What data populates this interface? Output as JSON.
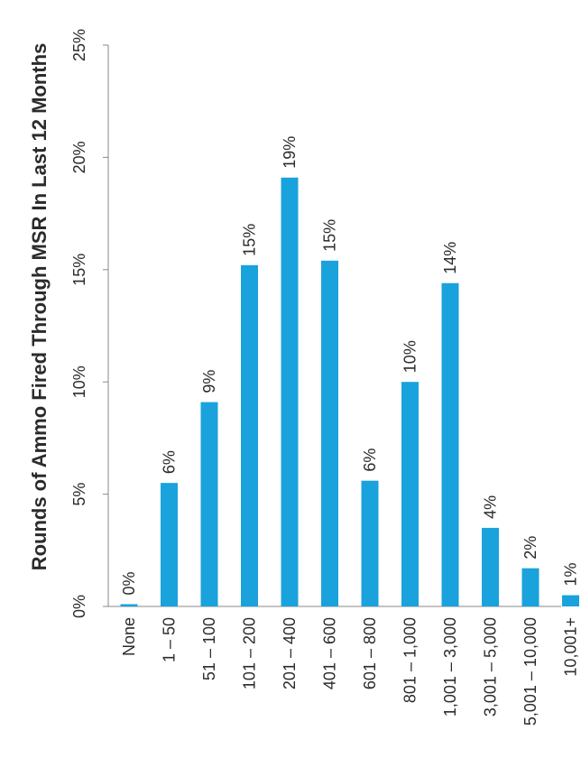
{
  "chart_data": {
    "type": "bar",
    "orientation": "vertical (figure rotated 90° counter-clockwise)",
    "title": "Rounds of Ammo Fired Through MSR In Last 12 Months",
    "xlabel": "",
    "ylabel": "",
    "categories": [
      "None",
      "1 – 50",
      "51 – 100",
      "101 – 200",
      "201 – 400",
      "401 – 600",
      "601 – 800",
      "801 – 1,000",
      "1,001 – 3,000",
      "3,001 – 5,000",
      "5,001 – 10,000",
      "10,001+"
    ],
    "values": [
      0.1,
      5.5,
      9.1,
      15.2,
      19.1,
      15.4,
      5.6,
      10.0,
      14.4,
      3.5,
      1.7,
      0.5
    ],
    "data_labels": [
      "0%",
      "6%",
      "9%",
      "15%",
      "19%",
      "15%",
      "6%",
      "10%",
      "14%",
      "4%",
      "2%",
      "1%"
    ],
    "ylim": [
      0,
      25
    ],
    "yticks": [
      "0%",
      "5%",
      "10%",
      "15%",
      "20%",
      "25%"
    ],
    "grid": false,
    "legend": "none",
    "bar_color": "#1aa2dd"
  }
}
